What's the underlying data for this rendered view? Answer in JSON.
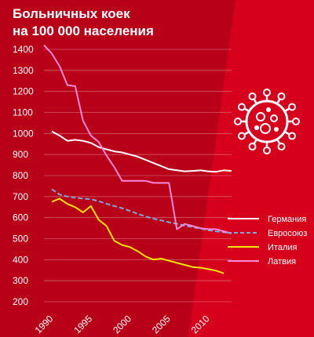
{
  "chart_data": {
    "type": "line",
    "title_lines": [
      "Больничных коек",
      "на 100 000 населения"
    ],
    "xlabel": "",
    "ylabel": "",
    "xlim": [
      1990,
      2014
    ],
    "ylim": [
      200,
      1400
    ],
    "x_ticks": [
      1990,
      1995,
      2000,
      2005,
      2010
    ],
    "y_ticks": [
      200,
      300,
      400,
      500,
      600,
      700,
      800,
      900,
      1000,
      1100,
      1200,
      1300,
      1400
    ],
    "grid": true,
    "legend_position": "right",
    "series": [
      {
        "name": "Германия",
        "color": "#ffffff",
        "dash": "solid",
        "x": [
          1991,
          1992,
          1993,
          1994,
          1995,
          1996,
          1997,
          1998,
          1999,
          2000,
          2001,
          2002,
          2003,
          2004,
          2005,
          2006,
          2007,
          2008,
          2009,
          2010,
          2011,
          2012,
          2013,
          2014
        ],
        "values": [
          1010,
          990,
          965,
          970,
          965,
          955,
          935,
          925,
          915,
          910,
          900,
          890,
          875,
          860,
          845,
          830,
          825,
          820,
          822,
          825,
          820,
          818,
          825,
          822
        ]
      },
      {
        "name": "Евросоюз",
        "color": "#7fa8d8",
        "dash": "dashed",
        "x": [
          1991,
          1992,
          1993,
          1994,
          1995,
          1996,
          1997,
          1998,
          1999,
          2000,
          2001,
          2002,
          2003,
          2004,
          2005,
          2006,
          2007,
          2008,
          2009,
          2010,
          2011,
          2012,
          2013,
          2014
        ],
        "values": [
          735,
          710,
          700,
          695,
          690,
          688,
          678,
          666,
          655,
          645,
          632,
          618,
          605,
          595,
          587,
          578,
          570,
          562,
          555,
          548,
          540,
          535,
          530,
          525
        ]
      },
      {
        "name": "Италия",
        "color": "#f2e500",
        "dash": "solid",
        "x": [
          1991,
          1992,
          1993,
          1994,
          1995,
          1996,
          1997,
          1998,
          1999,
          2000,
          2001,
          2002,
          2003,
          2004,
          2005,
          2006,
          2007,
          2008,
          2009,
          2010,
          2011,
          2012,
          2013
        ],
        "values": [
          675,
          690,
          665,
          650,
          625,
          655,
          590,
          560,
          490,
          470,
          460,
          440,
          415,
          400,
          405,
          395,
          385,
          375,
          365,
          362,
          355,
          348,
          335
        ]
      },
      {
        "name": "Латвия",
        "color": "#ff88d8",
        "dash": "solid",
        "x": [
          1990,
          1991,
          1992,
          1993,
          1994,
          1995,
          1996,
          1997,
          1998,
          1999,
          2000,
          2001,
          2002,
          2003,
          2004,
          2005,
          2006,
          2007,
          2008,
          2009,
          2010,
          2011,
          2012,
          2013,
          2014
        ],
        "values": [
          1420,
          1380,
          1320,
          1230,
          1225,
          1060,
          990,
          960,
          895,
          840,
          775,
          775,
          775,
          775,
          765,
          765,
          765,
          545,
          570,
          560,
          550,
          545,
          545,
          535,
          525
        ]
      }
    ]
  }
}
